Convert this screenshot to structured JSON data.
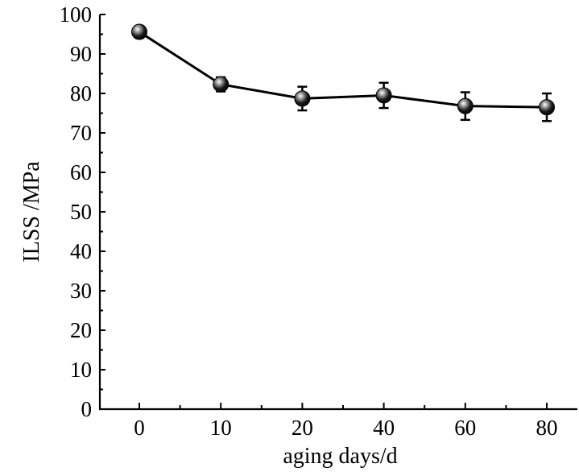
{
  "chart_data": {
    "type": "line",
    "xlabel": "aging days/d",
    "ylabel": "ILSS /MPa",
    "categories": [
      "0",
      "10",
      "20",
      "40",
      "60",
      "80"
    ],
    "ylim": [
      0,
      100
    ],
    "yticks": [
      "0",
      "10",
      "20",
      "30",
      "40",
      "50",
      "60",
      "70",
      "80",
      "90",
      "100"
    ],
    "series": [
      {
        "values": [
          95.6,
          82.3,
          78.7,
          79.5,
          76.8,
          76.5
        ],
        "error": [
          1.5,
          1.8,
          3.0,
          3.2,
          3.5,
          3.5
        ],
        "marker": "sphere",
        "color": "#000000"
      }
    ],
    "grid": false
  }
}
